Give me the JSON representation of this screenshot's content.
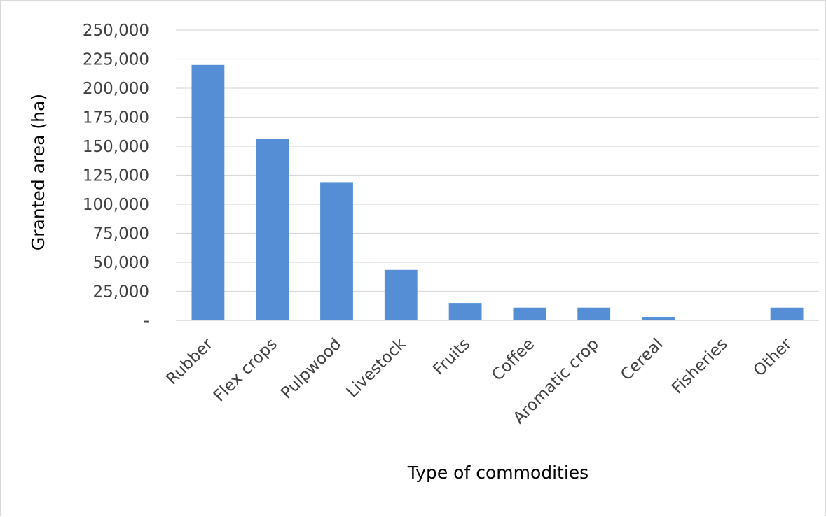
{
  "chart_data": {
    "type": "bar",
    "title": "",
    "xlabel": "Type of commodities",
    "ylabel": "Granted area (ha)",
    "categories": [
      "Rubber",
      "Flex crops",
      "Pulpwood",
      "Livestock",
      "Fruits",
      "Coffee",
      "Aromatic crop",
      "Cereal",
      "Fisheries",
      "Other"
    ],
    "values": [
      220000,
      156500,
      119000,
      43500,
      15000,
      11000,
      11000,
      3000,
      0,
      11000
    ],
    "ylim": [
      0,
      250000
    ],
    "yticks": [
      0,
      25000,
      50000,
      75000,
      100000,
      125000,
      150000,
      175000,
      200000,
      225000,
      250000
    ],
    "ytick_labels": [
      "-",
      "25,000",
      "50,000",
      "75,000",
      "100,000",
      "125,000",
      "150,000",
      "175,000",
      "200,000",
      "225,000",
      "250,000"
    ],
    "grid": true,
    "legend": "none",
    "bar_color": "#558ED5"
  }
}
